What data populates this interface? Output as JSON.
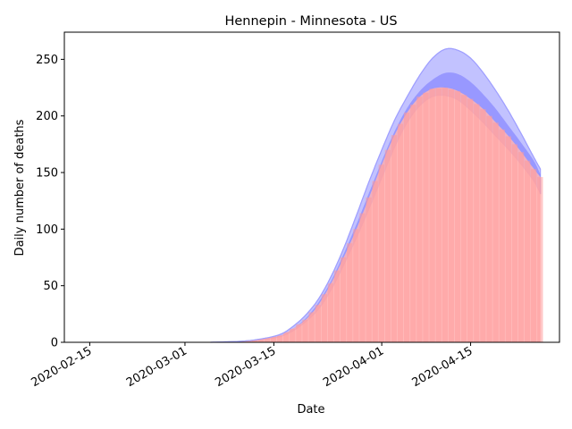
{
  "chart_data": {
    "type": "area",
    "title": "Hennepin - Minnesota - US",
    "xlabel": "Date",
    "ylabel": "Daily number of deaths",
    "x_range": [
      "2020-02-11",
      "2020-04-29"
    ],
    "ylim": [
      0,
      274
    ],
    "x_ticks": [
      "2020-02-15",
      "2020-03-01",
      "2020-03-15",
      "2020-04-01",
      "2020-04-15"
    ],
    "y_ticks": [
      0,
      50,
      100,
      150,
      200,
      250
    ],
    "grid": false,
    "legend": "none",
    "colors": {
      "observed_bars": "#ff9999",
      "observed_area": "#ffb3b3",
      "model_band": "#9999ff",
      "model_band_inner": "#7777ff",
      "model_line": "#a0a0ff"
    },
    "series": [
      {
        "x": [
          "2020-03-05",
          "2020-03-10",
          "2020-03-13",
          "2020-03-16",
          "2020-03-18",
          "2020-03-20",
          "2020-03-22",
          "2020-03-24",
          "2020-03-26",
          "2020-03-28",
          "2020-03-30",
          "2020-04-01",
          "2020-04-03",
          "2020-04-05",
          "2020-04-07",
          "2020-04-09",
          "2020-04-11",
          "2020-04-13",
          "2020-04-15",
          "2020-04-17",
          "2020-04-19",
          "2020-04-21",
          "2020-04-23",
          "2020-04-25",
          "2020-04-26"
        ],
        "values": [
          0,
          1,
          3,
          6,
          12,
          20,
          33,
          52,
          75,
          100,
          128,
          157,
          183,
          203,
          217,
          224,
          225,
          222,
          215,
          206,
          194,
          182,
          168,
          153,
          146
        ]
      },
      {
        "x": [
          "2020-03-05",
          "2020-03-10",
          "2020-03-13",
          "2020-03-16",
          "2020-03-18",
          "2020-03-20",
          "2020-03-22",
          "2020-03-24",
          "2020-03-26",
          "2020-03-28",
          "2020-03-30",
          "2020-04-01",
          "2020-04-03",
          "2020-04-05",
          "2020-04-07",
          "2020-04-09",
          "2020-04-11",
          "2020-04-13",
          "2020-04-15",
          "2020-04-17",
          "2020-04-19",
          "2020-04-21",
          "2020-04-23",
          "2020-04-25",
          "2020-04-26"
        ],
        "values": [
          0,
          1,
          2,
          5,
          10,
          18,
          29,
          46,
          68,
          92,
          118,
          145,
          172,
          194,
          209,
          217,
          218,
          214,
          205,
          194,
          182,
          170,
          157,
          142,
          131
        ]
      },
      {
        "x": [
          "2020-03-05",
          "2020-03-10",
          "2020-03-13",
          "2020-03-16",
          "2020-03-18",
          "2020-03-20",
          "2020-03-22",
          "2020-03-24",
          "2020-03-26",
          "2020-03-28",
          "2020-03-30",
          "2020-04-01",
          "2020-04-03",
          "2020-04-05",
          "2020-04-07",
          "2020-04-09",
          "2020-04-11",
          "2020-04-13",
          "2020-04-15",
          "2020-04-17",
          "2020-04-19",
          "2020-04-21",
          "2020-04-23",
          "2020-04-25",
          "2020-04-26"
        ],
        "values": [
          0,
          1,
          3,
          7,
          14,
          24,
          38,
          58,
          83,
          112,
          142,
          170,
          196,
          217,
          236,
          251,
          259,
          258,
          251,
          238,
          222,
          204,
          184,
          163,
          153
        ]
      },
      {
        "x": [
          "2020-03-05",
          "2020-03-10",
          "2020-03-13",
          "2020-03-16",
          "2020-03-18",
          "2020-03-20",
          "2020-03-22",
          "2020-03-24",
          "2020-03-26",
          "2020-03-28",
          "2020-03-30",
          "2020-04-01",
          "2020-04-03",
          "2020-04-05",
          "2020-04-07",
          "2020-04-09",
          "2020-04-11",
          "2020-04-13",
          "2020-04-15",
          "2020-04-17",
          "2020-04-19",
          "2020-04-21",
          "2020-04-23",
          "2020-04-25",
          "2020-04-26"
        ],
        "values": [
          0,
          1,
          3,
          6,
          12,
          21,
          35,
          54,
          78,
          104,
          132,
          160,
          186,
          207,
          222,
          232,
          238,
          237,
          230,
          219,
          206,
          191,
          176,
          160,
          148
        ]
      }
    ]
  }
}
